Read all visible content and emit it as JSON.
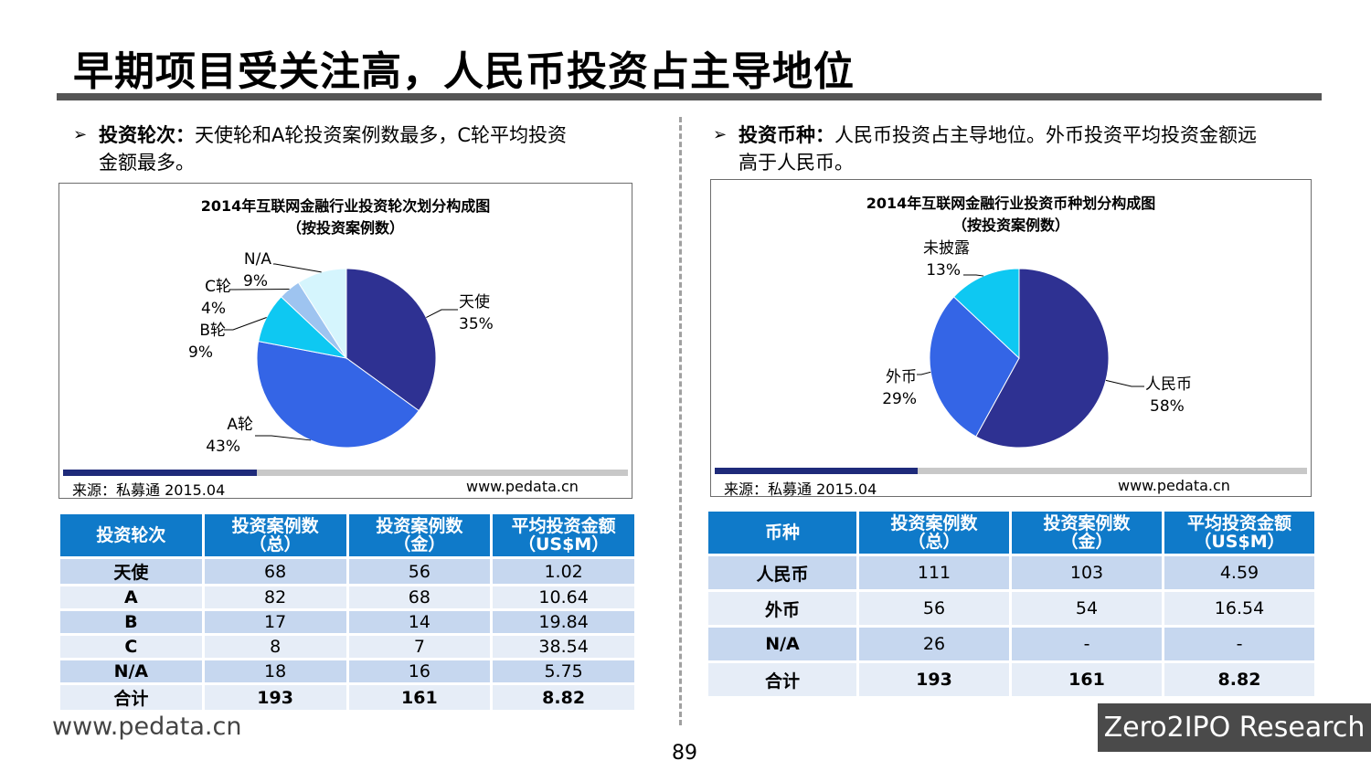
{
  "page": {
    "title": "早期项目受关注高，人民币投资占主导地位",
    "footer_url": "www.pedata.cn",
    "page_number": "89",
    "brand": "Zero2IPO Research"
  },
  "left": {
    "bullet_head": "投资轮次：",
    "bullet_text_line1": "天使轮和A轮投资案例数最多，C轮平均投资",
    "bullet_text_line2": "金额最多。",
    "source": "来源：私募通 2015.04",
    "site": "www.pedata.cn",
    "table": {
      "headers": [
        "投资轮次",
        "投资案例数\n（总）",
        "投资案例数\n（金）",
        "平均投资金额\n（US$M）"
      ],
      "rows": [
        [
          "天使",
          "68",
          "56",
          "1.02"
        ],
        [
          "A",
          "82",
          "68",
          "10.64"
        ],
        [
          "B",
          "17",
          "14",
          "19.84"
        ],
        [
          "C",
          "8",
          "7",
          "38.54"
        ],
        [
          "N/A",
          "18",
          "16",
          "5.75"
        ],
        [
          "合计",
          "193",
          "161",
          "8.82"
        ]
      ]
    }
  },
  "right": {
    "bullet_head": "投资币种：",
    "bullet_text_line1": "人民币投资占主导地位。外币投资平均投资金额远",
    "bullet_text_line2": "高于人民币。",
    "source": "来源：私募通 2015.04",
    "site": "www.pedata.cn",
    "table": {
      "headers": [
        "币种",
        "投资案例数\n（总）",
        "投资案例数\n（金）",
        "平均投资金额\n（US$M）"
      ],
      "rows": [
        [
          "人民币",
          "111",
          "103",
          "4.59"
        ],
        [
          "外币",
          "56",
          "54",
          "16.54"
        ],
        [
          "N/A",
          "26",
          "-",
          "-"
        ],
        [
          "合计",
          "193",
          "161",
          "8.82"
        ]
      ]
    }
  },
  "chart_data": [
    {
      "type": "pie",
      "title": "2014年互联网金融行业投资轮次划分构成图",
      "subtitle": "（按投资案例数）",
      "slices": [
        {
          "name": "天使",
          "value": 35,
          "label": "35%",
          "color": "#2e3192"
        },
        {
          "name": "A轮",
          "value": 43,
          "label": "43%",
          "color": "#3465e6"
        },
        {
          "name": "B轮",
          "value": 9,
          "label": "9%",
          "color": "#0ec8f2"
        },
        {
          "name": "C轮",
          "value": 4,
          "label": "4%",
          "color": "#9ec4f0"
        },
        {
          "name": "N/A",
          "value": 9,
          "label": "9%",
          "color": "#d5f5fd"
        }
      ]
    },
    {
      "type": "pie",
      "title": "2014年互联网金融行业投资币种划分构成图",
      "subtitle": "（按投资案例数）",
      "slices": [
        {
          "name": "人民币",
          "value": 58,
          "label": "58%",
          "color": "#2e3192"
        },
        {
          "name": "外币",
          "value": 29,
          "label": "29%",
          "color": "#3465e6"
        },
        {
          "name": "未披露",
          "value": 13,
          "label": "13%",
          "color": "#0ec8f2"
        }
      ]
    }
  ]
}
